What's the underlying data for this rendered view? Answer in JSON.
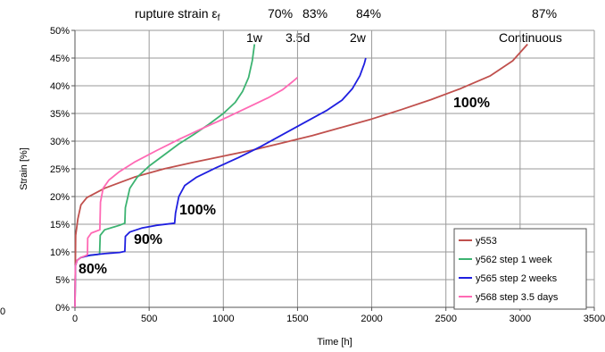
{
  "chart_data": {
    "type": "line",
    "xlabel": "Time [h]",
    "ylabel": "Strain [%]",
    "xlim": [
      0,
      3500
    ],
    "ylim": [
      0,
      50
    ],
    "x_ticks": [
      "0",
      "500",
      "1000",
      "1500",
      "2000",
      "2500",
      "3000",
      "3500"
    ],
    "y_ticks": [
      "0%",
      "5%",
      "10%",
      "15%",
      "20%",
      "25%",
      "30%",
      "35%",
      "40%",
      "45%",
      "50%"
    ],
    "left_edge_label": "0",
    "header": {
      "prefix": "rupture strain ε",
      "subscript": "f",
      "values": [
        "70%",
        "83%",
        "84%",
        "87%"
      ]
    },
    "top_labels": [
      "1w",
      "3.5d",
      "2w",
      "Continuous"
    ],
    "step_labels": [
      "80%",
      "90%",
      "100%",
      "100%"
    ],
    "series": [
      {
        "name": "y553",
        "color": "#C0504D",
        "points": [
          [
            0,
            0
          ],
          [
            5,
            13
          ],
          [
            20,
            16
          ],
          [
            40,
            18.5
          ],
          [
            80,
            19.8
          ],
          [
            200,
            21.5
          ],
          [
            400,
            23.5
          ],
          [
            600,
            25
          ],
          [
            800,
            26.2
          ],
          [
            1000,
            27.3
          ],
          [
            1200,
            28.4
          ],
          [
            1400,
            29.7
          ],
          [
            1600,
            31
          ],
          [
            1800,
            32.5
          ],
          [
            2000,
            34
          ],
          [
            2200,
            35.7
          ],
          [
            2400,
            37.5
          ],
          [
            2600,
            39.5
          ],
          [
            2800,
            41.8
          ],
          [
            2950,
            44.5
          ],
          [
            3050,
            47.5
          ]
        ]
      },
      {
        "name": "y562 step 1 week",
        "color": "#3CB371",
        "points": [
          [
            0,
            0
          ],
          [
            3,
            7.5
          ],
          [
            15,
            8.5
          ],
          [
            40,
            9
          ],
          [
            80,
            9.3
          ],
          [
            140,
            9.5
          ],
          [
            166,
            9.6
          ],
          [
            170,
            13
          ],
          [
            200,
            14
          ],
          [
            300,
            14.8
          ],
          [
            336,
            15.2
          ],
          [
            340,
            18
          ],
          [
            370,
            21.5
          ],
          [
            420,
            23.5
          ],
          [
            500,
            25.5
          ],
          [
            600,
            27.5
          ],
          [
            700,
            29.5
          ],
          [
            800,
            31.2
          ],
          [
            900,
            33
          ],
          [
            1000,
            35
          ],
          [
            1080,
            37
          ],
          [
            1130,
            39
          ],
          [
            1170,
            41.5
          ],
          [
            1195,
            44.5
          ],
          [
            1210,
            47.5
          ]
        ]
      },
      {
        "name": "y565 step 2 weeks",
        "color": "#1F1FE0",
        "points": [
          [
            0,
            0
          ],
          [
            3,
            7.5
          ],
          [
            15,
            8.5
          ],
          [
            40,
            9
          ],
          [
            100,
            9.4
          ],
          [
            200,
            9.7
          ],
          [
            300,
            9.9
          ],
          [
            336,
            10.1
          ],
          [
            340,
            12.8
          ],
          [
            370,
            13.6
          ],
          [
            450,
            14.3
          ],
          [
            550,
            14.8
          ],
          [
            672,
            15.2
          ],
          [
            678,
            17
          ],
          [
            700,
            20
          ],
          [
            740,
            22
          ],
          [
            820,
            23.5
          ],
          [
            950,
            25.2
          ],
          [
            1100,
            27
          ],
          [
            1250,
            29
          ],
          [
            1400,
            31.2
          ],
          [
            1550,
            33.4
          ],
          [
            1700,
            35.6
          ],
          [
            1800,
            37.4
          ],
          [
            1870,
            39.5
          ],
          [
            1920,
            41.8
          ],
          [
            1950,
            44
          ],
          [
            1960,
            45
          ]
        ]
      },
      {
        "name": "y568 step 3.5 days",
        "color": "#FF69B4",
        "points": [
          [
            0,
            0
          ],
          [
            3,
            7.5
          ],
          [
            15,
            8.5
          ],
          [
            40,
            9
          ],
          [
            70,
            9.3
          ],
          [
            84,
            9.5
          ],
          [
            86,
            12.5
          ],
          [
            110,
            13.4
          ],
          [
            168,
            14
          ],
          [
            172,
            19
          ],
          [
            190,
            21.5
          ],
          [
            230,
            23
          ],
          [
            300,
            24.5
          ],
          [
            400,
            26.2
          ],
          [
            550,
            28.3
          ],
          [
            700,
            30.3
          ],
          [
            850,
            32.2
          ],
          [
            1000,
            34
          ],
          [
            1150,
            35.9
          ],
          [
            1300,
            37.8
          ],
          [
            1400,
            39.3
          ],
          [
            1470,
            40.8
          ],
          [
            1500,
            41.5
          ]
        ]
      }
    ],
    "legend_position": "bottom-right",
    "grid": true
  }
}
